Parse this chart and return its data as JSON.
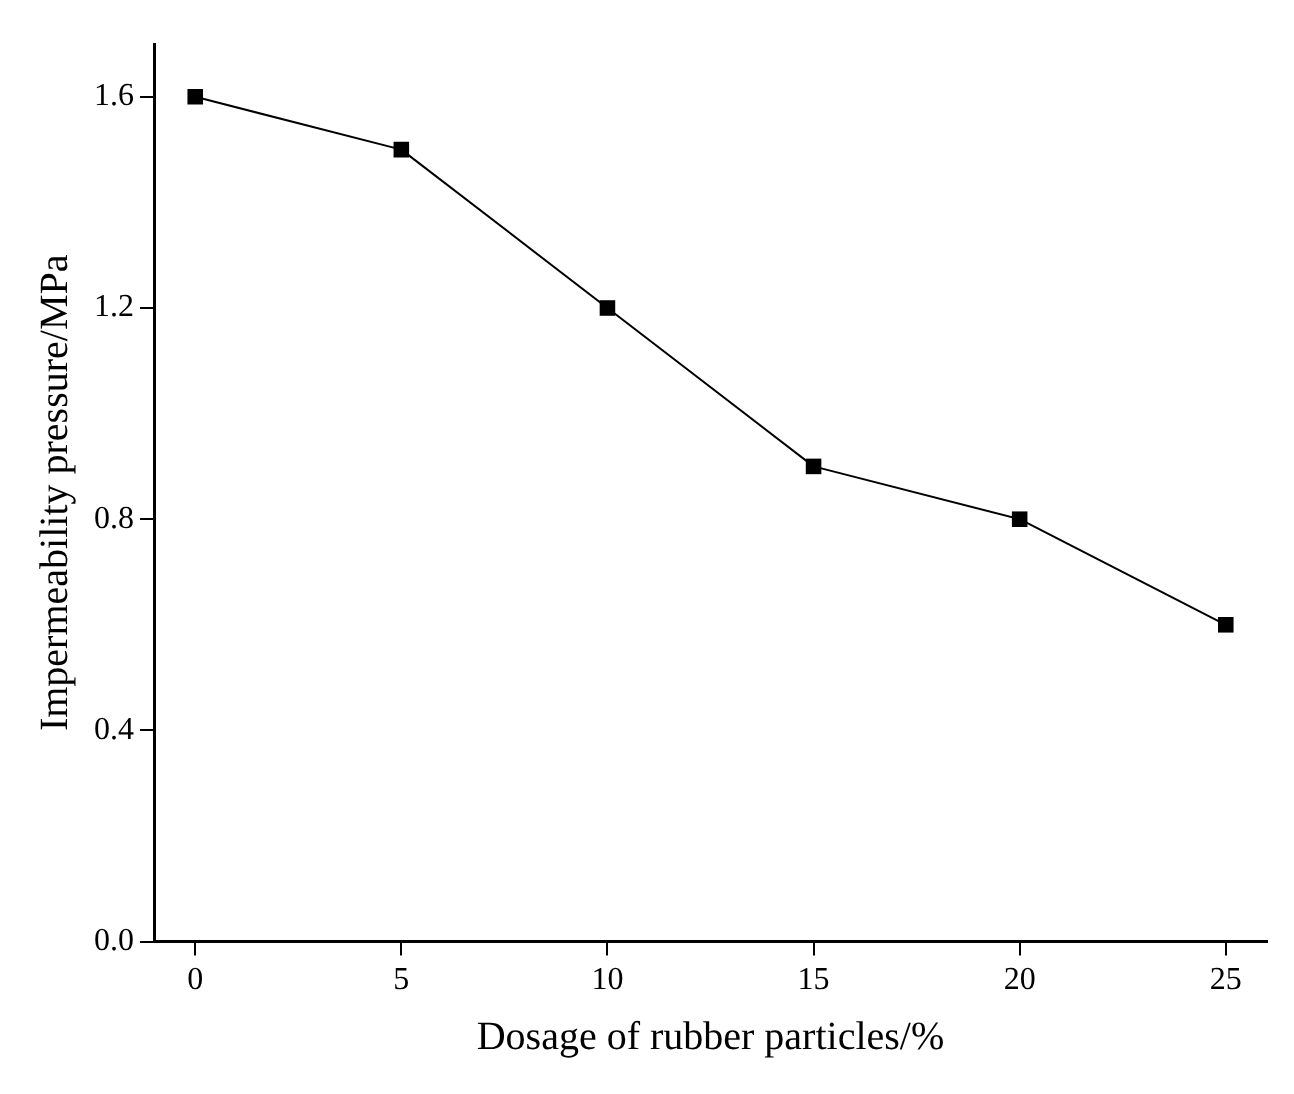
{
  "chart_data": {
    "type": "line",
    "xlabel": "Dosage of rubber particles/%",
    "ylabel": "Impermeability pressure/MPa",
    "x": [
      0,
      5,
      10,
      15,
      20,
      25
    ],
    "series": [
      {
        "color": "#000000",
        "values": [
          1.6,
          1.5,
          1.2,
          0.9,
          0.8,
          0.6
        ]
      }
    ],
    "xlim": [
      -1,
      26
    ],
    "xticks": [
      0,
      5,
      10,
      15,
      20,
      25
    ],
    "ylim": [
      0,
      1.7
    ],
    "yticks": [
      {
        "value": 0,
        "label": "0.0"
      },
      {
        "value": 0.4,
        "label": "0.4"
      },
      {
        "value": 0.8,
        "label": "0.8"
      },
      {
        "value": 1.2,
        "label": "1.2"
      },
      {
        "value": 1.6,
        "label": "1.6"
      }
    ],
    "grid": false,
    "legend": false,
    "marker": "square",
    "line_style": "solid"
  }
}
